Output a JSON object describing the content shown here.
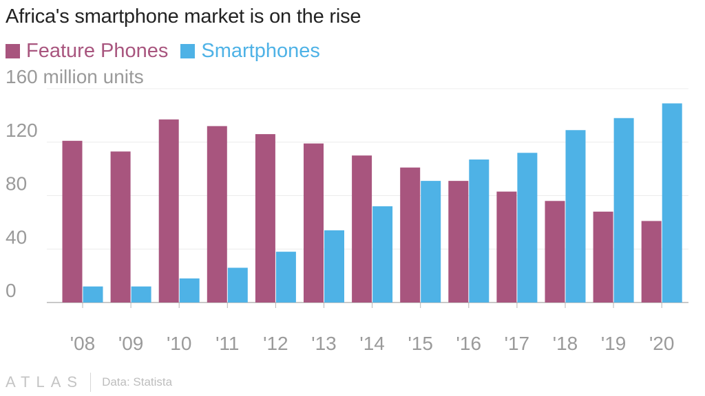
{
  "title": "Africa's smartphone market is on the rise",
  "legend": [
    {
      "label": "Feature Phones",
      "color": "#a8557e"
    },
    {
      "label": "Smartphones",
      "color": "#4eb2e6"
    }
  ],
  "footer": {
    "logo": "ATLAS",
    "source": "Data: Statista"
  },
  "chart_data": {
    "type": "bar",
    "title": "Africa's smartphone market is on the rise",
    "unit_label": "million units",
    "categories": [
      "'08",
      "'09",
      "'10",
      "'11",
      "'12",
      "'13",
      "'14",
      "'15",
      "'16",
      "'17",
      "'18",
      "'19",
      "'20"
    ],
    "series": [
      {
        "name": "Feature Phones",
        "color": "#a8557e",
        "values": [
          121,
          113,
          137,
          132,
          126,
          119,
          110,
          101,
          91,
          83,
          76,
          68,
          61
        ]
      },
      {
        "name": "Smartphones",
        "color": "#4eb2e6",
        "values": [
          12,
          12,
          18,
          26,
          38,
          54,
          72,
          91,
          107,
          112,
          129,
          138,
          149
        ]
      }
    ],
    "ylim": [
      0,
      160
    ],
    "yticks": [
      0,
      40,
      80,
      120,
      160
    ],
    "ytick_labels": [
      "0",
      "40",
      "80",
      "120",
      "160 million units"
    ],
    "grid": true,
    "legend_position": "top-left"
  }
}
